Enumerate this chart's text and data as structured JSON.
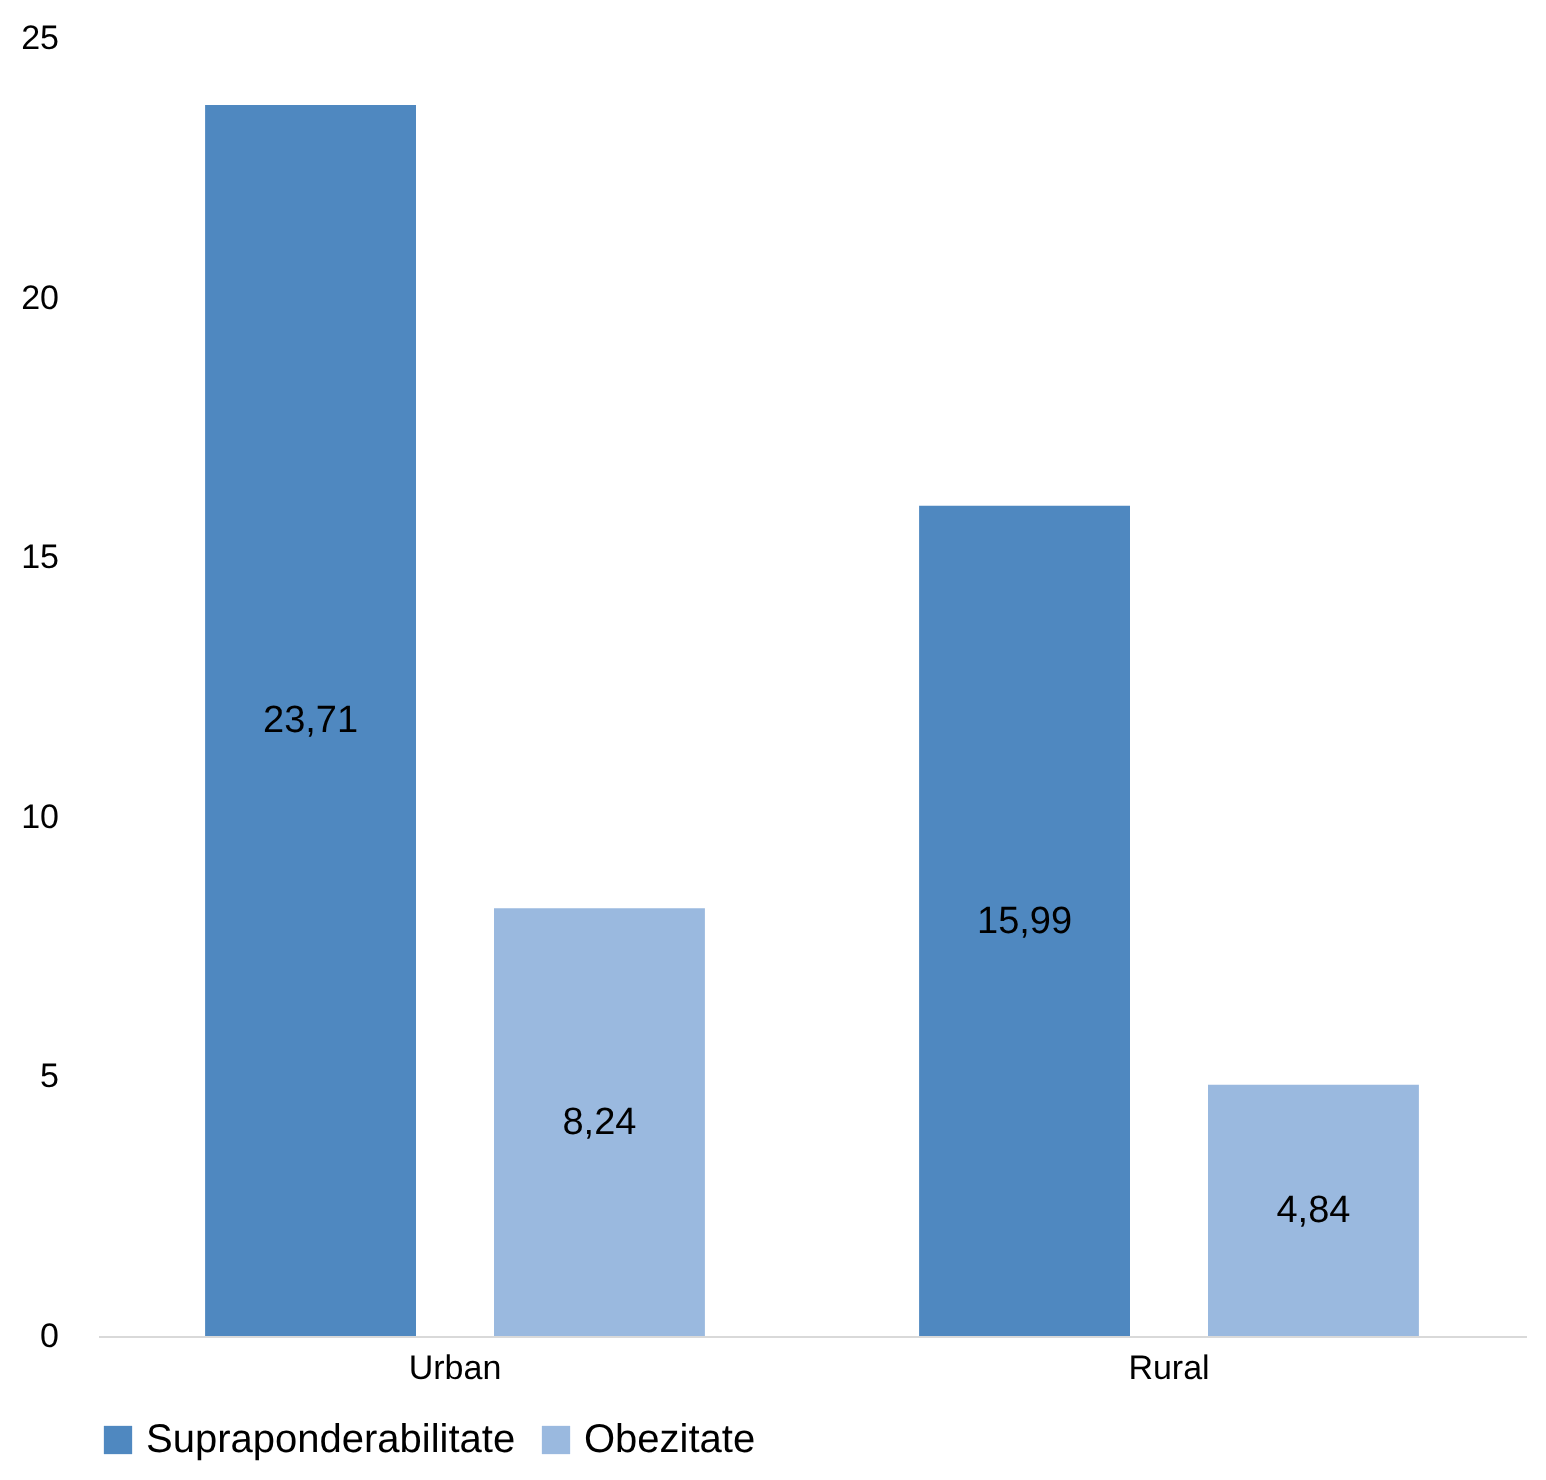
{
  "chart_data": {
    "type": "bar",
    "categories": [
      "Urban",
      "Rural"
    ],
    "series": [
      {
        "name": "Supraponderabilitate",
        "color": "#4f88c0",
        "values": [
          23.71,
          15.99
        ],
        "value_labels": [
          "23,71",
          "15,99"
        ]
      },
      {
        "name": "Obezitate",
        "color": "#9ab9df",
        "values": [
          8.24,
          4.84
        ],
        "value_labels": [
          "8,24",
          "4,84"
        ]
      }
    ],
    "ylim": [
      0,
      25
    ],
    "yticks": [
      0,
      5,
      10,
      15,
      20,
      25
    ],
    "grid": false,
    "legend": "bottom"
  }
}
